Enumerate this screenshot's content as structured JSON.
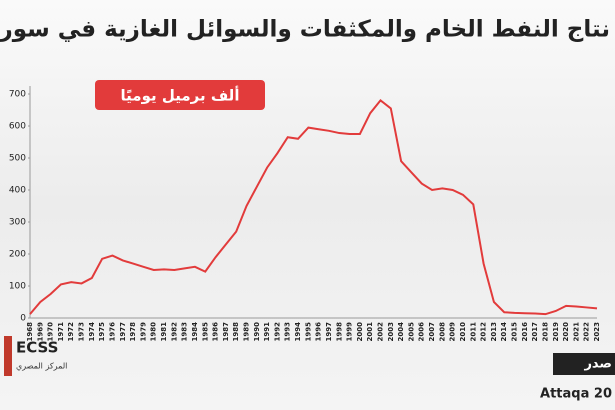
{
  "title": "نتاج النفط الخام والمكثفات والسوائل الغازية في سوري",
  "chart_data": {
    "type": "line",
    "unit_label": "ألف برميل يوميًا",
    "x": [
      1968,
      1969,
      1970,
      1971,
      1972,
      1973,
      1974,
      1975,
      1976,
      1977,
      1978,
      1979,
      1980,
      1981,
      1982,
      1983,
      1984,
      1985,
      1986,
      1987,
      1988,
      1989,
      1990,
      1991,
      1992,
      1993,
      1994,
      1995,
      1996,
      1997,
      1998,
      1999,
      2000,
      2001,
      2002,
      2003,
      2004,
      2005,
      2006,
      2007,
      2008,
      2009,
      2010,
      2011,
      2012,
      2013,
      2014,
      2015,
      2016,
      2017,
      2018,
      2019,
      2020,
      2021,
      2022,
      2023
    ],
    "series": [
      {
        "color": "#e23b3b",
        "values": [
          12,
          50,
          75,
          105,
          112,
          108,
          125,
          185,
          195,
          180,
          170,
          160,
          150,
          152,
          150,
          155,
          160,
          145,
          190,
          230,
          270,
          350,
          410,
          470,
          515,
          565,
          560,
          595,
          590,
          585,
          578,
          575,
          575,
          640,
          680,
          655,
          490,
          455,
          420,
          400,
          405,
          400,
          385,
          355,
          170,
          50,
          18,
          16,
          15,
          14,
          12,
          22,
          38,
          36,
          33,
          30
        ]
      }
    ],
    "xlim": [
      1968,
      2023
    ],
    "ylim": [
      0,
      700
    ],
    "yticks": [
      0,
      100,
      200,
      300,
      400,
      500,
      600,
      700
    ]
  },
  "source_label": "صدر",
  "source": "Attaqa 20",
  "logo": "ECSS",
  "logo_sub": "المركز المصري"
}
